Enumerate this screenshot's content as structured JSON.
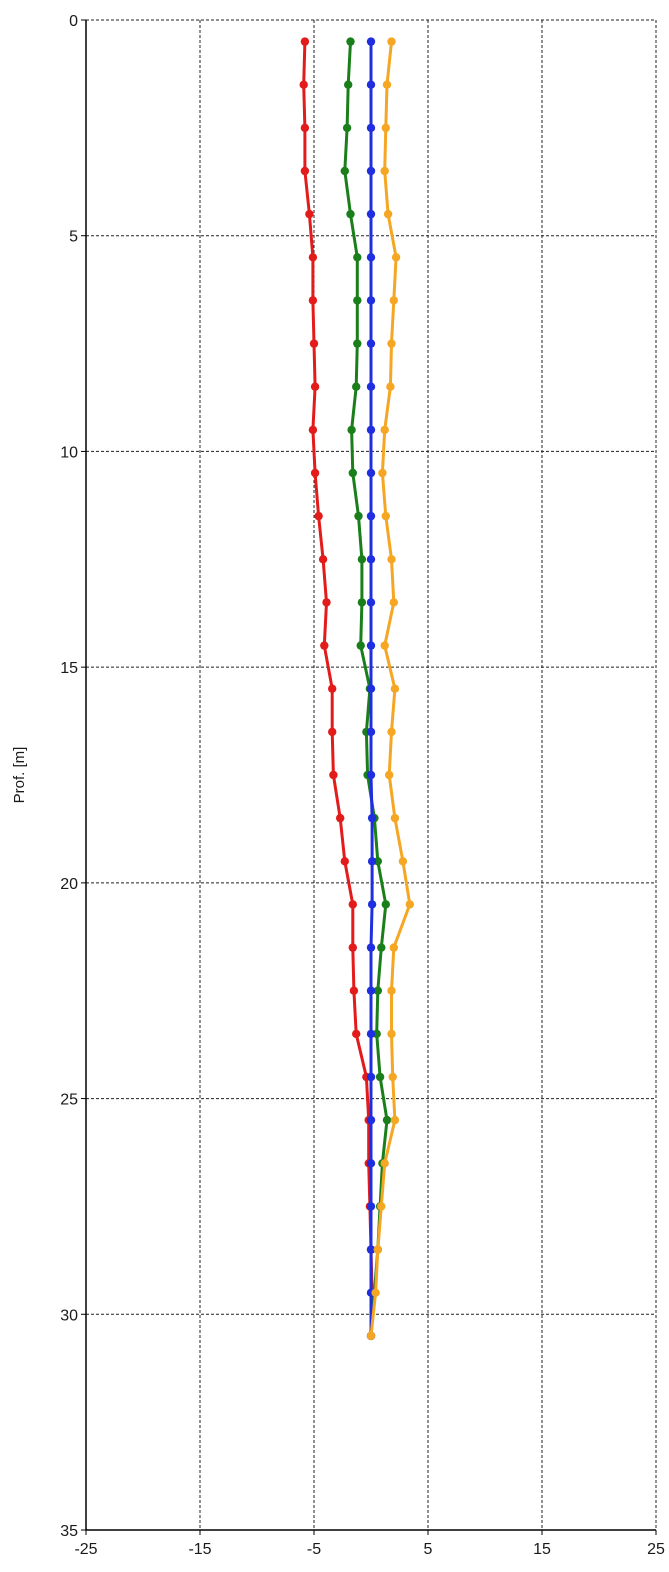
{
  "chart_data": {
    "type": "line",
    "title": "",
    "xlabel": "",
    "ylabel": "Prof. [m]",
    "xlim": [
      -25,
      25
    ],
    "ylim": [
      0,
      35
    ],
    "y_inverted": true,
    "x_ticks": [
      -25,
      -15,
      -5,
      5,
      15,
      25
    ],
    "y_ticks": [
      0,
      5,
      10,
      15,
      20,
      25,
      30,
      35
    ],
    "grid": true,
    "grid_style": "dashed",
    "legend": "none",
    "series": [
      {
        "color": "#e31b1b",
        "points": [
          [
            -5.8,
            0.5
          ],
          [
            -5.9,
            1.5
          ],
          [
            -5.8,
            2.5
          ],
          [
            -5.8,
            3.5
          ],
          [
            -5.4,
            4.5
          ],
          [
            -5.1,
            5.5
          ],
          [
            -5.1,
            6.5
          ],
          [
            -5.0,
            7.5
          ],
          [
            -4.9,
            8.5
          ],
          [
            -5.1,
            9.5
          ],
          [
            -4.9,
            10.5
          ],
          [
            -4.6,
            11.5
          ],
          [
            -4.2,
            12.5
          ],
          [
            -3.9,
            13.5
          ],
          [
            -4.1,
            14.5
          ],
          [
            -3.4,
            15.5
          ],
          [
            -3.4,
            16.5
          ],
          [
            -3.3,
            17.5
          ],
          [
            -2.7,
            18.5
          ],
          [
            -2.3,
            19.5
          ],
          [
            -1.6,
            20.5
          ],
          [
            -1.6,
            21.5
          ],
          [
            -1.5,
            22.5
          ],
          [
            -1.3,
            23.5
          ],
          [
            -0.4,
            24.5
          ],
          [
            -0.2,
            25.5
          ],
          [
            -0.2,
            26.5
          ],
          [
            -0.1,
            27.5
          ],
          [
            0.0,
            28.5
          ],
          [
            0.1,
            29.5
          ],
          [
            0.0,
            30.5
          ]
        ]
      },
      {
        "color": "#1a7f1a",
        "points": [
          [
            -1.8,
            0.5
          ],
          [
            -2.0,
            1.5
          ],
          [
            -2.1,
            2.5
          ],
          [
            -2.3,
            3.5
          ],
          [
            -1.8,
            4.5
          ],
          [
            -1.2,
            5.5
          ],
          [
            -1.2,
            6.5
          ],
          [
            -1.2,
            7.5
          ],
          [
            -1.3,
            8.5
          ],
          [
            -1.7,
            9.5
          ],
          [
            -1.6,
            10.5
          ],
          [
            -1.1,
            11.5
          ],
          [
            -0.8,
            12.5
          ],
          [
            -0.8,
            13.5
          ],
          [
            -0.9,
            14.5
          ],
          [
            -0.1,
            15.5
          ],
          [
            -0.4,
            16.5
          ],
          [
            -0.3,
            17.5
          ],
          [
            0.3,
            18.5
          ],
          [
            0.6,
            19.5
          ],
          [
            1.3,
            20.5
          ],
          [
            0.9,
            21.5
          ],
          [
            0.6,
            22.5
          ],
          [
            0.5,
            23.5
          ],
          [
            0.8,
            24.5
          ],
          [
            1.4,
            25.5
          ],
          [
            1.0,
            26.5
          ],
          [
            0.8,
            27.5
          ],
          [
            0.6,
            28.5
          ],
          [
            0.3,
            29.5
          ],
          [
            0.0,
            30.5
          ]
        ]
      },
      {
        "color": "#1f2fe0",
        "points": [
          [
            0.0,
            0.5
          ],
          [
            0.0,
            1.5
          ],
          [
            0.0,
            2.5
          ],
          [
            0.0,
            3.5
          ],
          [
            0.0,
            4.5
          ],
          [
            0.0,
            5.5
          ],
          [
            0.0,
            6.5
          ],
          [
            0.0,
            7.5
          ],
          [
            0.0,
            8.5
          ],
          [
            0.0,
            9.5
          ],
          [
            0.0,
            10.5
          ],
          [
            0.0,
            11.5
          ],
          [
            0.0,
            12.5
          ],
          [
            0.0,
            13.5
          ],
          [
            0.0,
            14.5
          ],
          [
            0.0,
            15.5
          ],
          [
            0.0,
            16.5
          ],
          [
            0.0,
            17.5
          ],
          [
            0.1,
            18.5
          ],
          [
            0.1,
            19.5
          ],
          [
            0.1,
            20.5
          ],
          [
            0.0,
            21.5
          ],
          [
            0.0,
            22.5
          ],
          [
            0.0,
            23.5
          ],
          [
            0.0,
            24.5
          ],
          [
            0.0,
            25.5
          ],
          [
            0.0,
            26.5
          ],
          [
            0.0,
            27.5
          ],
          [
            0.0,
            28.5
          ],
          [
            0.0,
            29.5
          ],
          [
            0.0,
            30.5
          ]
        ]
      },
      {
        "color": "#f5a623",
        "points": [
          [
            1.8,
            0.5
          ],
          [
            1.4,
            1.5
          ],
          [
            1.3,
            2.5
          ],
          [
            1.2,
            3.5
          ],
          [
            1.5,
            4.5
          ],
          [
            2.2,
            5.5
          ],
          [
            2.0,
            6.5
          ],
          [
            1.8,
            7.5
          ],
          [
            1.7,
            8.5
          ],
          [
            1.2,
            9.5
          ],
          [
            1.0,
            10.5
          ],
          [
            1.3,
            11.5
          ],
          [
            1.8,
            12.5
          ],
          [
            2.0,
            13.5
          ],
          [
            1.2,
            14.5
          ],
          [
            2.1,
            15.5
          ],
          [
            1.8,
            16.5
          ],
          [
            1.6,
            17.5
          ],
          [
            2.1,
            18.5
          ],
          [
            2.8,
            19.5
          ],
          [
            3.4,
            20.5
          ],
          [
            2.0,
            21.5
          ],
          [
            1.8,
            22.5
          ],
          [
            1.8,
            23.5
          ],
          [
            1.9,
            24.5
          ],
          [
            2.1,
            25.5
          ],
          [
            1.2,
            26.5
          ],
          [
            0.9,
            27.5
          ],
          [
            0.6,
            28.5
          ],
          [
            0.4,
            29.5
          ],
          [
            0.0,
            30.5
          ]
        ]
      }
    ]
  }
}
